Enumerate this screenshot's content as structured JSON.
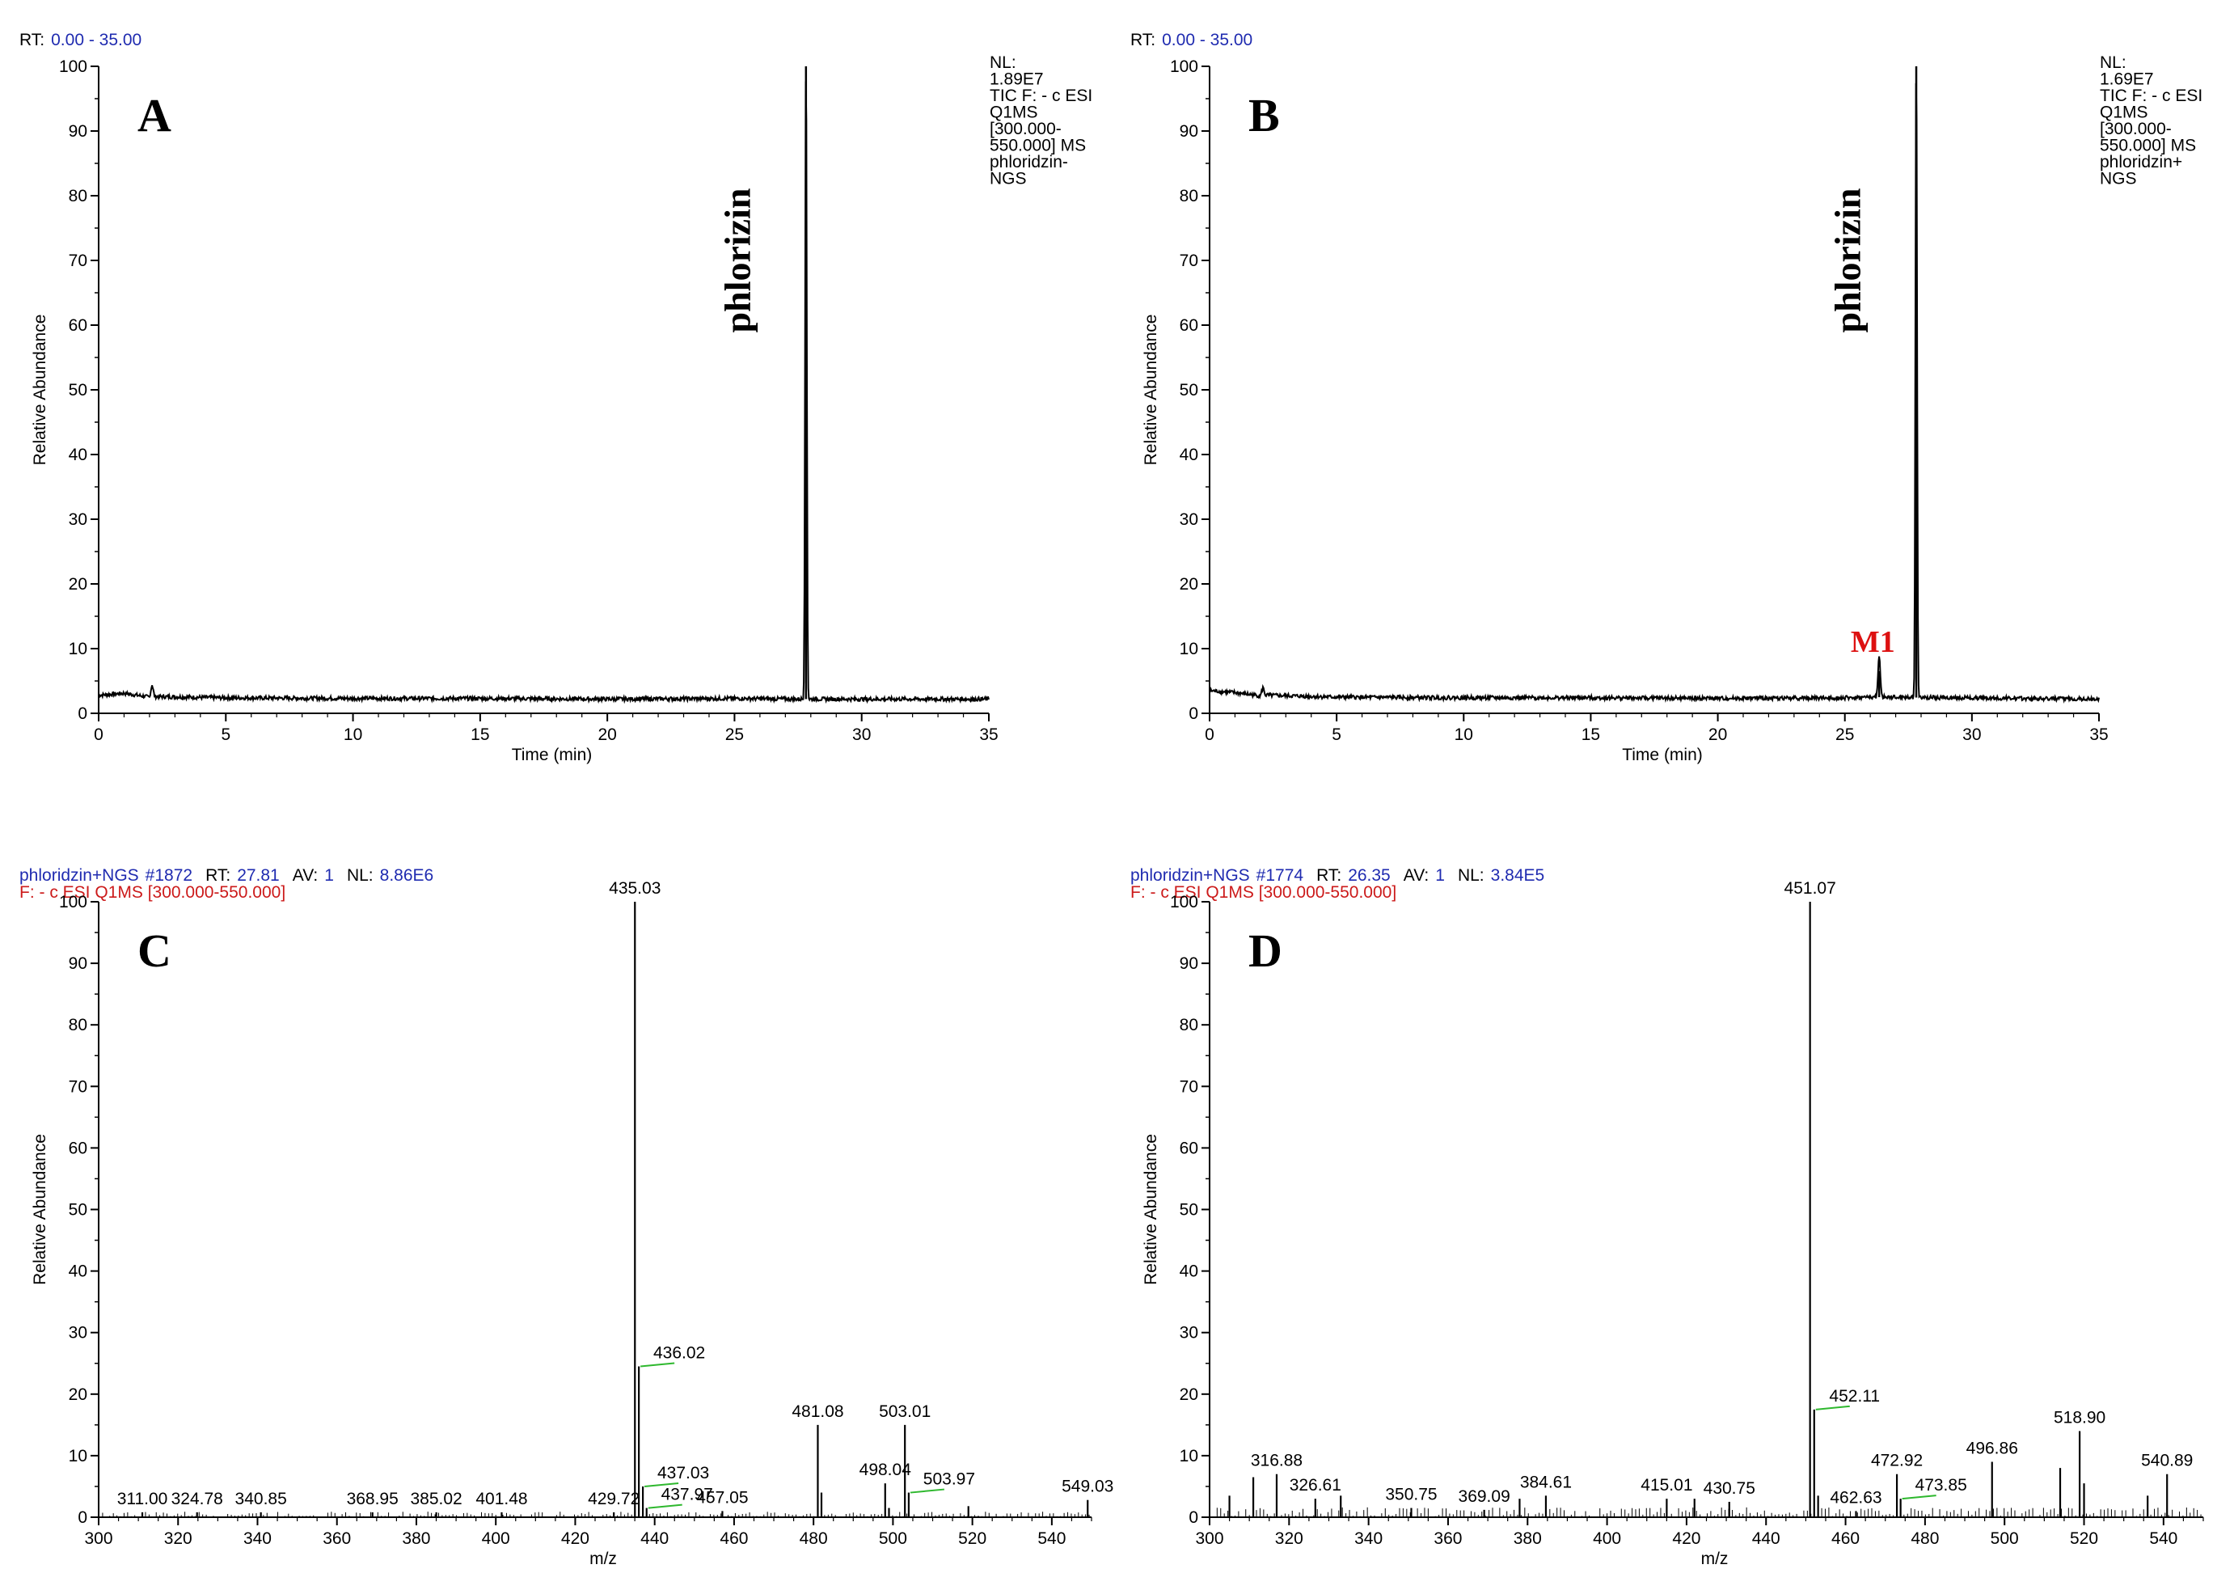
{
  "chart_data": [
    {
      "type": "line",
      "panel_letter": "A",
      "header": [
        {
          "label": "RT:",
          "value": "0.00 - 35.00"
        }
      ],
      "info_lines": [
        "NL:",
        "1.89E7",
        "TIC F: - c ESI",
        "Q1MS",
        "[300.000-",
        "550.000]  MS",
        "phloridzin-",
        "NGS"
      ],
      "xlabel": "Time (min)",
      "ylabel": "Relative Abundance",
      "xlim": [
        0,
        35
      ],
      "ylim": [
        0,
        100
      ],
      "xticks": [
        0,
        5,
        10,
        15,
        20,
        25,
        30,
        35
      ],
      "yticks": [
        0,
        10,
        20,
        30,
        40,
        50,
        60,
        70,
        80,
        90,
        100
      ],
      "baseline": [
        [
          0,
          2.8
        ],
        [
          1,
          3.1
        ],
        [
          2,
          2.5
        ],
        [
          2.1,
          4.5
        ],
        [
          2.2,
          2.6
        ],
        [
          5,
          2.4
        ],
        [
          10,
          2.3
        ],
        [
          15,
          2.3
        ],
        [
          20,
          2.2
        ],
        [
          25,
          2.3
        ],
        [
          27.5,
          2.2
        ],
        [
          35,
          2.2
        ]
      ],
      "peaks": [
        {
          "rt": 27.81,
          "height": 100
        }
      ],
      "annotations": [
        {
          "text": "phlorizin",
          "x": 25.6,
          "y": 70,
          "color": "#000000"
        }
      ]
    },
    {
      "type": "line",
      "panel_letter": "B",
      "header": [
        {
          "label": "RT:",
          "value": "0.00 - 35.00"
        }
      ],
      "info_lines": [
        "NL:",
        "1.69E7",
        "TIC F: - c ESI",
        "Q1MS",
        "[300.000-",
        "550.000]  MS",
        "phloridzin+",
        "NGS"
      ],
      "xlabel": "Time (min)",
      "ylabel": "Relative Abundance",
      "xlim": [
        0,
        35
      ],
      "ylim": [
        0,
        100
      ],
      "xticks": [
        0,
        5,
        10,
        15,
        20,
        25,
        30,
        35
      ],
      "yticks": [
        0,
        10,
        20,
        30,
        40,
        50,
        60,
        70,
        80,
        90,
        100
      ],
      "baseline": [
        [
          0,
          3.5
        ],
        [
          1,
          3.2
        ],
        [
          2,
          2.7
        ],
        [
          2.1,
          4
        ],
        [
          2.2,
          2.8
        ],
        [
          5,
          2.5
        ],
        [
          10,
          2.4
        ],
        [
          15,
          2.4
        ],
        [
          20,
          2.3
        ],
        [
          25,
          2.4
        ],
        [
          26.2,
          2.5
        ],
        [
          35,
          2.2
        ]
      ],
      "peaks": [
        {
          "rt": 26.35,
          "height": 6.5
        },
        {
          "rt": 27.81,
          "height": 100
        }
      ],
      "annotations": [
        {
          "text": "phlorizin",
          "x": 25.6,
          "y": 70,
          "color": "#000000"
        },
        {
          "text": "M1",
          "x": 26.1,
          "y": 9.5,
          "color": "#dd1111"
        }
      ]
    },
    {
      "type": "bar",
      "panel_letter": "C",
      "header": [
        {
          "label": "phloridzin+NGS",
          "value": "#1872"
        },
        {
          "label": "RT:",
          "value": "27.81"
        },
        {
          "label": "AV:",
          "value": "1"
        },
        {
          "label": "NL:",
          "value": "8.86E6"
        }
      ],
      "filter_line": "F: - c ESI Q1MS [300.000-550.000]",
      "xlabel": "m/z",
      "ylabel": "Relative Abundance",
      "xlim": [
        300,
        550
      ],
      "ylim": [
        0,
        100
      ],
      "xticks": [
        300,
        320,
        340,
        360,
        380,
        400,
        420,
        440,
        460,
        480,
        500,
        520,
        540
      ],
      "yticks": [
        0,
        10,
        20,
        30,
        40,
        50,
        60,
        70,
        80,
        90,
        100
      ],
      "peaks": [
        {
          "mz": 311.0,
          "intensity": 0.8,
          "label": "311.00"
        },
        {
          "mz": 324.78,
          "intensity": 0.8,
          "label": "324.78"
        },
        {
          "mz": 340.85,
          "intensity": 0.8,
          "label": "340.85"
        },
        {
          "mz": 368.95,
          "intensity": 0.8,
          "label": "368.95"
        },
        {
          "mz": 385.02,
          "intensity": 0.8,
          "label": "385.02"
        },
        {
          "mz": 401.48,
          "intensity": 0.8,
          "label": "401.48"
        },
        {
          "mz": 429.72,
          "intensity": 0.8,
          "label": "429.72"
        },
        {
          "mz": 435.03,
          "intensity": 100,
          "label": "435.03"
        },
        {
          "mz": 436.02,
          "intensity": 24.5,
          "label": "436.02"
        },
        {
          "mz": 437.03,
          "intensity": 5,
          "label": "437.03"
        },
        {
          "mz": 437.97,
          "intensity": 1.5,
          "label": "437.97"
        },
        {
          "mz": 457.05,
          "intensity": 1,
          "label": "457.05"
        },
        {
          "mz": 481.08,
          "intensity": 15,
          "label": "481.08"
        },
        {
          "mz": 482.0,
          "intensity": 4,
          "label": ""
        },
        {
          "mz": 498.04,
          "intensity": 5.5,
          "label": "498.04"
        },
        {
          "mz": 499.0,
          "intensity": 1.5,
          "label": ""
        },
        {
          "mz": 503.01,
          "intensity": 15,
          "label": "503.01"
        },
        {
          "mz": 503.97,
          "intensity": 4,
          "label": "503.97"
        },
        {
          "mz": 519.0,
          "intensity": 1.8,
          "label": ""
        },
        {
          "mz": 549.03,
          "intensity": 2.8,
          "label": "549.03"
        }
      ]
    },
    {
      "type": "bar",
      "panel_letter": "D",
      "header": [
        {
          "label": "phloridzin+NGS",
          "value": "#1774"
        },
        {
          "label": "RT:",
          "value": "26.35"
        },
        {
          "label": "AV:",
          "value": "1"
        },
        {
          "label": "NL:",
          "value": "3.84E5"
        }
      ],
      "filter_line": "F: - c ESI Q1MS [300.000-550.000]",
      "xlabel": "m/z",
      "ylabel": "Relative Abundance",
      "xlim": [
        300,
        550
      ],
      "ylim": [
        0,
        100
      ],
      "xticks": [
        300,
        320,
        340,
        360,
        380,
        400,
        420,
        440,
        460,
        480,
        500,
        520,
        540
      ],
      "yticks": [
        0,
        10,
        20,
        30,
        40,
        50,
        60,
        70,
        80,
        90,
        100
      ],
      "peaks": [
        {
          "mz": 305.0,
          "intensity": 3.5,
          "label": ""
        },
        {
          "mz": 311.0,
          "intensity": 6.5,
          "label": ""
        },
        {
          "mz": 316.88,
          "intensity": 7,
          "label": "316.88"
        },
        {
          "mz": 326.61,
          "intensity": 3,
          "label": "326.61"
        },
        {
          "mz": 333.0,
          "intensity": 3.5,
          "label": ""
        },
        {
          "mz": 350.75,
          "intensity": 1.5,
          "label": "350.75"
        },
        {
          "mz": 369.09,
          "intensity": 1.2,
          "label": "369.09"
        },
        {
          "mz": 378.0,
          "intensity": 3,
          "label": ""
        },
        {
          "mz": 384.61,
          "intensity": 3.5,
          "label": "384.61"
        },
        {
          "mz": 415.01,
          "intensity": 3,
          "label": "415.01"
        },
        {
          "mz": 422.0,
          "intensity": 3,
          "label": ""
        },
        {
          "mz": 430.75,
          "intensity": 2.5,
          "label": "430.75"
        },
        {
          "mz": 451.07,
          "intensity": 100,
          "label": "451.07"
        },
        {
          "mz": 452.11,
          "intensity": 17.5,
          "label": "452.11"
        },
        {
          "mz": 453.1,
          "intensity": 3.5,
          "label": ""
        },
        {
          "mz": 462.63,
          "intensity": 1,
          "label": "462.63"
        },
        {
          "mz": 472.92,
          "intensity": 7,
          "label": "472.92"
        },
        {
          "mz": 473.85,
          "intensity": 3,
          "label": "473.85"
        },
        {
          "mz": 496.86,
          "intensity": 9,
          "label": "496.86"
        },
        {
          "mz": 514.0,
          "intensity": 8,
          "label": ""
        },
        {
          "mz": 518.9,
          "intensity": 14,
          "label": "518.90"
        },
        {
          "mz": 520.0,
          "intensity": 5.5,
          "label": ""
        },
        {
          "mz": 536.0,
          "intensity": 3.5,
          "label": ""
        },
        {
          "mz": 540.89,
          "intensity": 7,
          "label": "540.89"
        }
      ]
    }
  ],
  "colors": {
    "axis": "#000000",
    "trace": "#000000",
    "header_value": "#1f2bb0",
    "filter_text": "#cc1a1a",
    "annotation_red": "#dd1111",
    "label_connector": "#2eb82e"
  }
}
